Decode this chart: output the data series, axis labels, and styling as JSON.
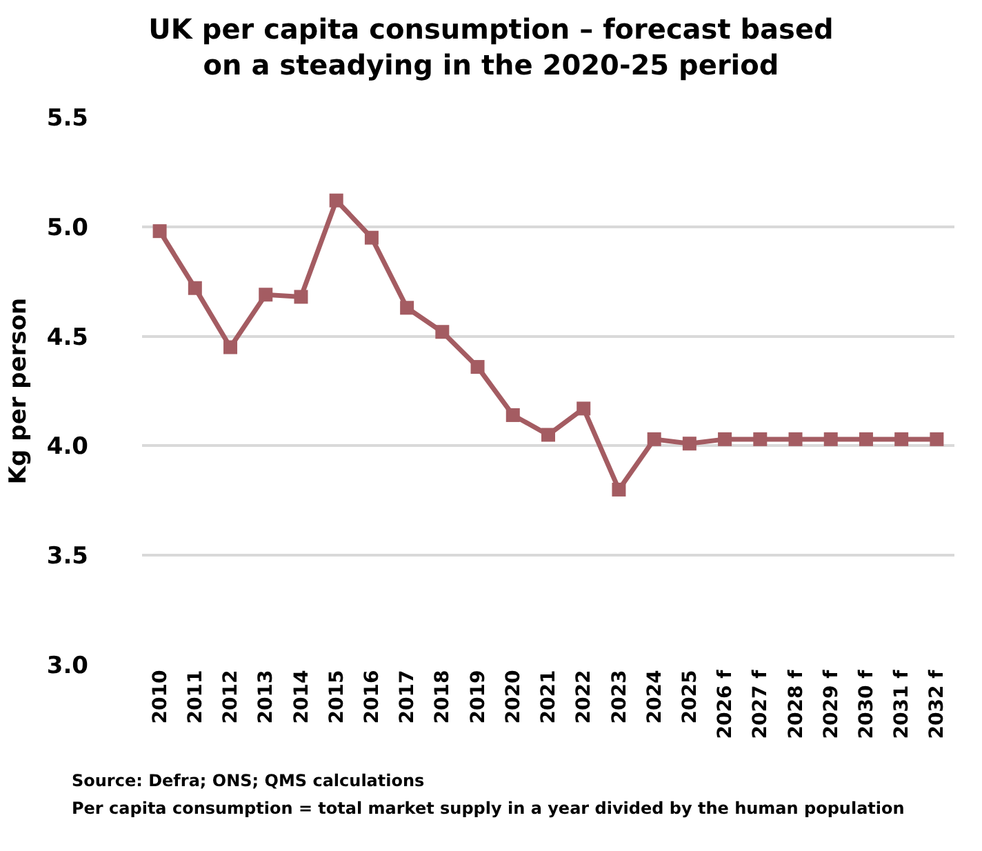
{
  "chart_data": {
    "type": "line",
    "title": "UK per capita consumption – forecast based\non a steadying in the 2020-25 period",
    "ylabel": "Kg per person",
    "categories": [
      "2010",
      "2011",
      "2012",
      "2013",
      "2014",
      "2015",
      "2016",
      "2017",
      "2018",
      "2019",
      "2020",
      "2021",
      "2022",
      "2023",
      "2024",
      "2025",
      "2026 f",
      "2027 f",
      "2028 f",
      "2029 f",
      "2030 f",
      "2031 f",
      "2032 f"
    ],
    "series": [
      {
        "color": "#a45c62",
        "values": [
          4.98,
          4.72,
          4.45,
          4.69,
          4.68,
          5.12,
          4.95,
          4.63,
          4.52,
          4.36,
          4.14,
          4.05,
          4.17,
          3.8,
          4.03,
          4.01,
          4.03,
          4.03,
          4.03,
          4.03,
          4.03,
          4.03,
          4.03
        ]
      }
    ],
    "ylim": [
      3.0,
      5.5
    ],
    "yticks": [
      {
        "value": 3.0,
        "label": "3.0"
      },
      {
        "value": 3.5,
        "label": "3.5"
      },
      {
        "value": 4.0,
        "label": "4.0"
      },
      {
        "value": 4.5,
        "label": "4.5"
      },
      {
        "value": 5.0,
        "label": "5.0"
      },
      {
        "value": 5.5,
        "label": "5.5"
      }
    ],
    "grid": "y",
    "marker": "square",
    "line_style": "solid",
    "annotations": [
      "Source: Defra; ONS; QMS calculations",
      "Per capita consumption = total market supply in a year divided by the human population"
    ]
  }
}
